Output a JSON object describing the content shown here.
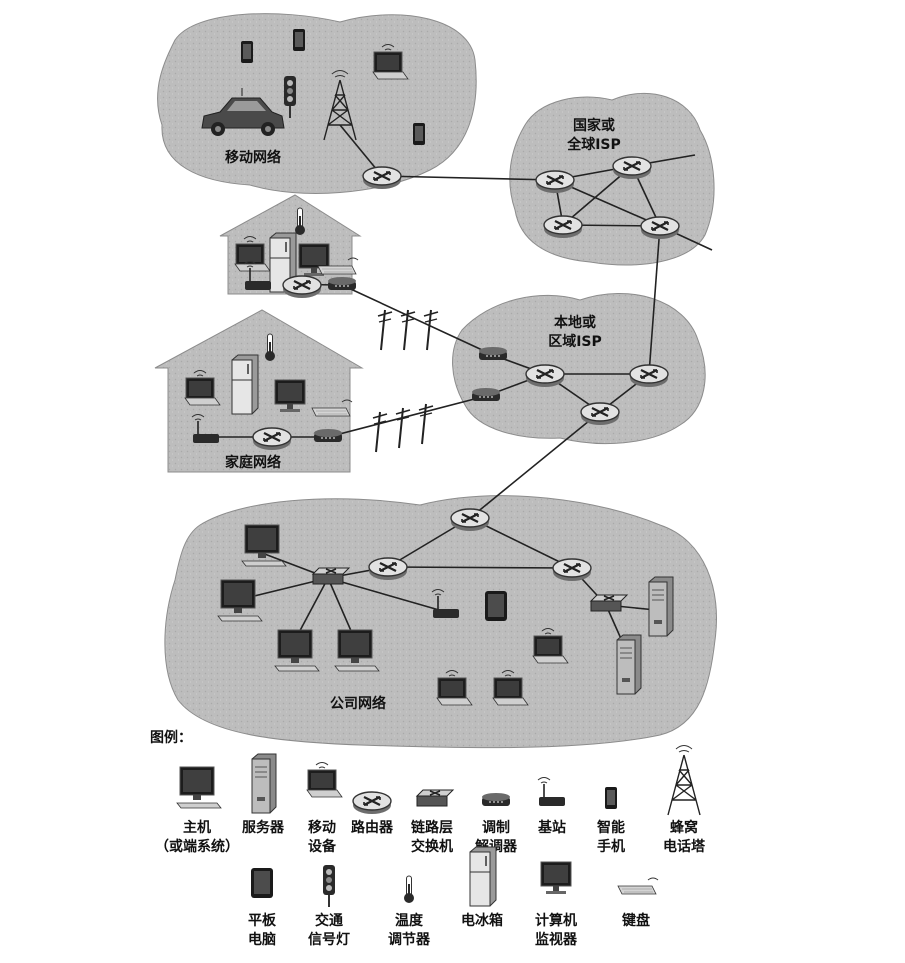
{
  "regions": {
    "mobile": "移动网络",
    "national_isp_1": "国家或",
    "national_isp_2": "全球ISP",
    "local_isp_1": "本地或",
    "local_isp_2": "区域ISP",
    "home": "家庭网络",
    "enterprise": "公司网络"
  },
  "legend": {
    "title": "图例：",
    "row1": [
      {
        "icon": "host-icon",
        "lines": [
          "主机",
          "（或端系统）"
        ]
      },
      {
        "icon": "server-icon",
        "lines": [
          "服务器"
        ]
      },
      {
        "icon": "mobile-device-icon",
        "lines": [
          "移动",
          "设备"
        ]
      },
      {
        "icon": "router-icon",
        "lines": [
          "路由器"
        ]
      },
      {
        "icon": "link-switch-icon",
        "lines": [
          "链路层",
          "交换机"
        ]
      },
      {
        "icon": "modem-icon",
        "lines": [
          "调制",
          "解调器"
        ]
      },
      {
        "icon": "base-station-icon",
        "lines": [
          "基站"
        ]
      },
      {
        "icon": "smartphone-icon",
        "lines": [
          "智能",
          "手机"
        ]
      },
      {
        "icon": "cell-tower-icon",
        "lines": [
          "蜂窝",
          "电话塔"
        ]
      }
    ],
    "row2": [
      {
        "icon": "tablet-icon",
        "lines": [
          "平板",
          "电脑"
        ]
      },
      {
        "icon": "traffic-light-icon",
        "lines": [
          "交通",
          "信号灯"
        ]
      },
      {
        "icon": "thermostat-icon",
        "lines": [
          "温度",
          "调节器"
        ]
      },
      {
        "icon": "fridge-icon",
        "lines": [
          "电冰箱"
        ]
      },
      {
        "icon": "monitor-icon",
        "lines": [
          "计算机",
          "监视器"
        ]
      },
      {
        "icon": "keyboard-icon",
        "lines": [
          "键盘"
        ]
      }
    ]
  }
}
